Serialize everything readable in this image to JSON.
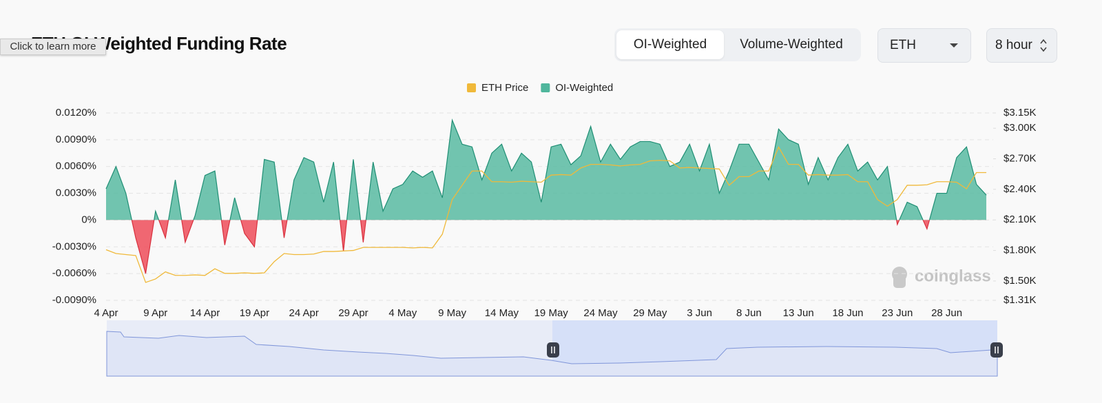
{
  "header": {
    "title": "ETH OI-Weighted Funding Rate",
    "tooltip": "Click to learn more"
  },
  "controls": {
    "tabs": [
      "OI-Weighted",
      "Volume-Weighted"
    ],
    "active_tab": 0,
    "symbol": "ETH",
    "interval": "8 hour"
  },
  "watermark": "coinglass",
  "chart_data": {
    "type": "area",
    "categories": [
      "4 Apr",
      null,
      null,
      null,
      null,
      "9 Apr",
      null,
      null,
      null,
      null,
      "14 Apr",
      null,
      null,
      null,
      null,
      "19 Apr",
      null,
      null,
      null,
      null,
      "24 Apr",
      null,
      null,
      null,
      null,
      "29 Apr",
      null,
      null,
      null,
      null,
      "4 May",
      null,
      null,
      null,
      null,
      "9 May",
      null,
      null,
      null,
      null,
      "14 May",
      null,
      null,
      null,
      null,
      "19 May",
      null,
      null,
      null,
      null,
      "24 May",
      null,
      null,
      null,
      null,
      "29 May",
      null,
      null,
      null,
      null,
      "3 Jun",
      null,
      null,
      null,
      null,
      "8 Jun",
      null,
      null,
      null,
      null,
      "13 Jun",
      null,
      null,
      null,
      null,
      "18 Jun",
      null,
      null,
      null,
      null,
      "23 Jun",
      null,
      null,
      null,
      null,
      "28 Jun",
      null,
      null,
      null,
      null
    ],
    "series": [
      {
        "name": "ETH Price",
        "axis": "y2",
        "color": "#f0b93a",
        "values": [
          1807,
          1770,
          1760,
          1750,
          1486,
          1520,
          1590,
          1555,
          1555,
          1560,
          1555,
          1620,
          1575,
          1575,
          1580,
          1575,
          1580,
          1690,
          1770,
          1760,
          1760,
          1765,
          1790,
          1790,
          1795,
          1800,
          1830,
          1830,
          1830,
          1830,
          1830,
          1825,
          1830,
          1825,
          1960,
          2300,
          2440,
          2580,
          2580,
          2475,
          2475,
          2470,
          2480,
          2475,
          2470,
          2540,
          2545,
          2540,
          2610,
          2645,
          2645,
          2640,
          2630,
          2640,
          2645,
          2680,
          2685,
          2680,
          2610,
          2615,
          2610,
          2605,
          2600,
          2440,
          2525,
          2525,
          2580,
          2580,
          2815,
          2645,
          2645,
          2540,
          2545,
          2540,
          2540,
          2545,
          2475,
          2475,
          2300,
          2235,
          2300,
          2440,
          2440,
          2445,
          2475,
          2475,
          2470,
          2405,
          2565,
          2565
        ]
      },
      {
        "name": "OI-Weighted",
        "color": "#4fb69c",
        "negative_color": "#ef4d5a",
        "values": [
          0.0035,
          0.006,
          0.003,
          -0.002,
          -0.006,
          0.001,
          -0.002,
          0.0045,
          -0.0025,
          0.0005,
          0.005,
          0.0055,
          -0.0028,
          0.0025,
          -0.0015,
          -0.003,
          0.0068,
          0.0065,
          -0.002,
          0.0045,
          0.007,
          0.0065,
          0.002,
          0.0065,
          -0.0035,
          0.0068,
          -0.0025,
          0.0065,
          0.001,
          0.0035,
          0.004,
          0.0055,
          0.0048,
          0.0055,
          0.0025,
          0.0112,
          0.0085,
          0.0082,
          0.0045,
          0.0075,
          0.0085,
          0.0055,
          0.0075,
          0.0065,
          0.002,
          0.0082,
          0.0085,
          0.0062,
          0.0072,
          0.0105,
          0.0065,
          0.0085,
          0.0068,
          0.0082,
          0.0088,
          0.0088,
          0.0085,
          0.006,
          0.0065,
          0.0085,
          0.0055,
          0.0085,
          0.003,
          0.0055,
          0.0085,
          0.0085,
          0.0065,
          0.0045,
          0.0102,
          0.009,
          0.0085,
          0.004,
          0.007,
          0.0045,
          0.007,
          0.0085,
          0.0055,
          0.0065,
          0.0045,
          0.006,
          -0.0005,
          0.002,
          0.0015,
          -0.001,
          0.003,
          0.003,
          0.007,
          0.0082,
          0.004,
          0.0028
        ]
      }
    ],
    "ylim": [
      -0.009,
      0.012
    ],
    "yticks": [
      {
        "value": 0.012,
        "label": "0.0120%"
      },
      {
        "value": 0.009,
        "label": "0.0090%"
      },
      {
        "value": 0.006,
        "label": "0.0060%"
      },
      {
        "value": 0.003,
        "label": "0.0030%"
      },
      {
        "value": 0,
        "label": "0%"
      },
      {
        "value": -0.003,
        "label": "-0.0030%"
      },
      {
        "value": -0.006,
        "label": "-0.0060%"
      },
      {
        "value": -0.009,
        "label": "-0.0090%"
      }
    ],
    "y2lim": [
      1310,
      3150
    ],
    "y2ticks": [
      {
        "value": 3150,
        "label": "$3.15K"
      },
      {
        "value": 3000,
        "label": "$3.00K"
      },
      {
        "value": 2700,
        "label": "$2.70K"
      },
      {
        "value": 2400,
        "label": "$2.40K"
      },
      {
        "value": 2100,
        "label": "$2.10K"
      },
      {
        "value": 1800,
        "label": "$1.80K"
      },
      {
        "value": 1500,
        "label": "$1.50K"
      },
      {
        "value": 1310,
        "label": "$1.31K"
      }
    ],
    "grid": true,
    "legend": "top"
  }
}
